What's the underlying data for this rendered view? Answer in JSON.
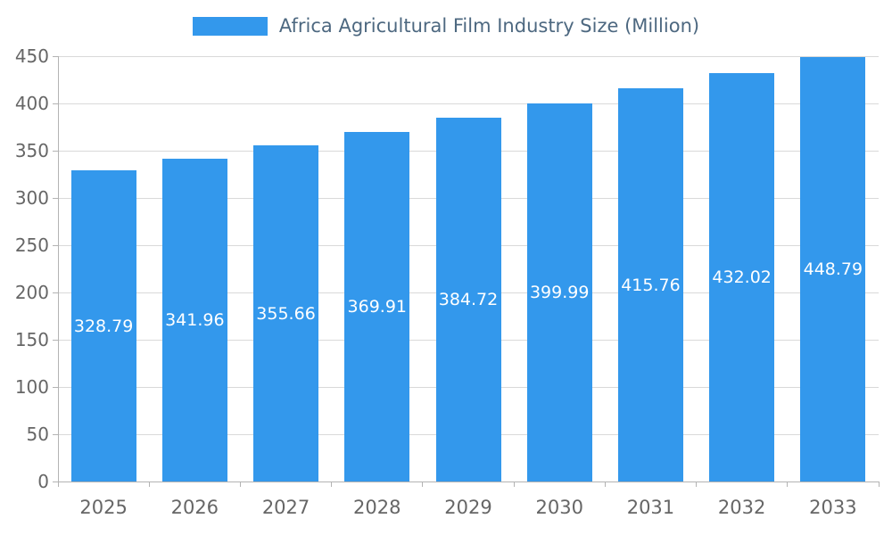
{
  "chart_data": {
    "type": "bar",
    "title": "Africa Agricultural Film Industry Size (Million)",
    "categories": [
      "2025",
      "2026",
      "2027",
      "2028",
      "2029",
      "2030",
      "2031",
      "2032",
      "2033"
    ],
    "values": [
      328.79,
      341.96,
      355.66,
      369.91,
      384.72,
      399.99,
      415.76,
      432.02,
      448.79
    ],
    "value_labels": [
      "328.79",
      "341.96",
      "355.66",
      "369.91",
      "384.72",
      "399.99",
      "415.76",
      "432.02",
      "448.79"
    ],
    "xlabel": "",
    "ylabel": "",
    "ylim": [
      0,
      450
    ],
    "yticks": [
      0,
      50,
      100,
      150,
      200,
      250,
      300,
      350,
      400,
      450
    ],
    "grid": true,
    "legend_position": "top",
    "colors": {
      "bar": "#3398EC",
      "bar_value_label": "#ffffff",
      "title_text": "#4d6880",
      "axis_text": "#666666",
      "grid_line": "#d9d9d9",
      "axis_line": "#b3b3b3",
      "background": "#ffffff"
    }
  }
}
